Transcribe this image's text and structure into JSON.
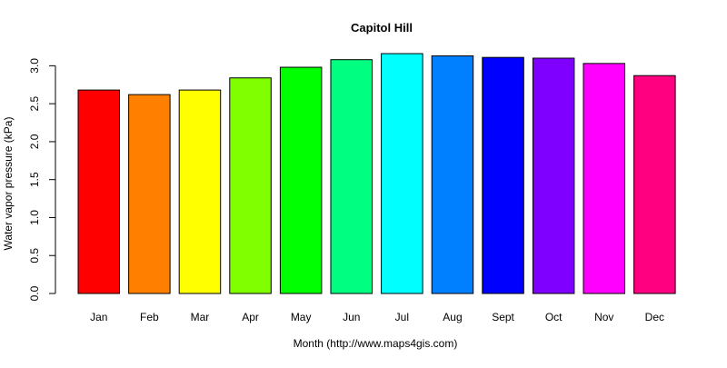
{
  "chart_data": {
    "type": "bar",
    "title": "Capitol Hill",
    "xlabel": "Month (http://www.maps4gis.com)",
    "ylabel": "Water vapor pressure (kPa)",
    "categories": [
      "Jan",
      "Feb",
      "Mar",
      "Apr",
      "May",
      "Jun",
      "Jul",
      "Aug",
      "Sept",
      "Oct",
      "Nov",
      "Dec"
    ],
    "values": [
      2.68,
      2.62,
      2.68,
      2.84,
      2.98,
      3.08,
      3.16,
      3.13,
      3.11,
      3.1,
      3.03,
      2.87
    ],
    "colors": [
      "#FF0000",
      "#FF8000",
      "#FFFF00",
      "#80FF00",
      "#00FF00",
      "#00FF80",
      "#00FFFF",
      "#0080FF",
      "#0000FF",
      "#8000FF",
      "#FF00FF",
      "#FF0080"
    ],
    "yticks": [
      "0.0",
      "0.5",
      "1.0",
      "1.5",
      "2.0",
      "2.5",
      "3.0"
    ],
    "ylim": [
      0,
      3.16
    ],
    "grid": false,
    "legend": "none"
  }
}
